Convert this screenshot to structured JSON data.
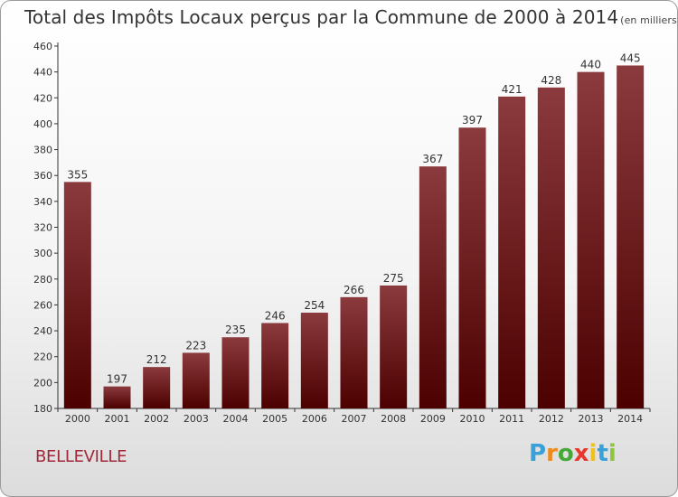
{
  "title": "Total des Impôts Locaux perçus par la Commune de 2000 à 2014",
  "unit": "(en milliers d'€)",
  "commune": "BELLEVILLE",
  "logo": {
    "letters": [
      "P",
      "r",
      "o",
      "x",
      "i",
      "t",
      "i"
    ],
    "colors": [
      "#3aa0d8",
      "#f08a1c",
      "#46a838",
      "#e8372c",
      "#f2c01a",
      "#3aa0d8",
      "#8cc63f"
    ]
  },
  "colors": {
    "bar_top": "#8b3a3d",
    "bar_bottom": "#4c0000",
    "axis": "#333333",
    "grid": "#c8c8c8"
  },
  "chart_data": {
    "type": "bar",
    "title": "Total des Impôts Locaux perçus par la Commune de 2000 à 2014",
    "subtitle": "(en milliers d'€)",
    "categories": [
      "2000",
      "2001",
      "2002",
      "2003",
      "2004",
      "2005",
      "2006",
      "2007",
      "2008",
      "2009",
      "2010",
      "2011",
      "2012",
      "2013",
      "2014"
    ],
    "values": [
      355,
      197,
      212,
      223,
      235,
      246,
      254,
      266,
      275,
      367,
      397,
      421,
      428,
      440,
      445
    ],
    "ylim": [
      180,
      460
    ],
    "yticks": [
      180,
      200,
      220,
      240,
      260,
      280,
      300,
      320,
      340,
      360,
      380,
      400,
      420,
      440,
      460
    ],
    "grid": false,
    "legend": "none"
  }
}
